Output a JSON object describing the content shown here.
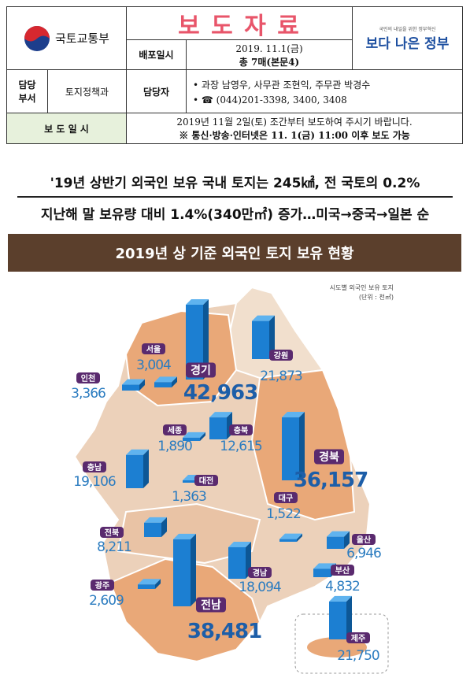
{
  "header": {
    "agency": "국토교통부",
    "title": "보 도 자 료",
    "release_label": "배포일시",
    "release_date": "2019. 11.1(금)",
    "pages": "총 7매(본문4)",
    "slogan_small": "국민의 내일을 위한 정부혁신",
    "slogan": "보다 나은 정부"
  },
  "contact": {
    "dept_label": "담당 부서",
    "dept": "토지정책과",
    "person_label": "담당자",
    "persons": "과장 남영우, 사무관 조현익, 주무관 박경수",
    "phone": "(044)201-3398, 3400, 3408"
  },
  "embargo": {
    "label": "보 도 일 시",
    "text": "2019년 11월 2일(토) 조간부터 보도하여 주시기 바랍니다.",
    "note": "※ 통신·방송·인터넷은 11. 1(금) 11:00 이후 보도 가능"
  },
  "headlines": [
    "'19년 상반기 외국인 보유 국내 토지는 245㎢, 전 국토의 0.2%",
    "지난해 말 보유량 대비 1.4%(340만㎡) 증가…미국→중국→일본 순"
  ],
  "infographic": {
    "title": "2019년 상 기준 외국인 토지 보유 현황",
    "legend_title": "시도별 외국인 보유 토지",
    "unit": "(단위 : 천㎡)",
    "regions": [
      {
        "name": "서울",
        "value": 3004,
        "label": "3,004"
      },
      {
        "name": "경기",
        "value": 42963,
        "label": "42,963"
      },
      {
        "name": "강원",
        "value": 21873,
        "label": "21,873"
      },
      {
        "name": "인천",
        "value": 3366,
        "label": "3,366"
      },
      {
        "name": "세종",
        "value": 1890,
        "label": "1,890"
      },
      {
        "name": "충북",
        "value": 12615,
        "label": "12,615"
      },
      {
        "name": "충남",
        "value": 19106,
        "label": "19,106"
      },
      {
        "name": "대전",
        "value": 1363,
        "label": "1,363"
      },
      {
        "name": "경북",
        "value": 36157,
        "label": "36,157"
      },
      {
        "name": "대구",
        "value": 1522,
        "label": "1,522"
      },
      {
        "name": "전북",
        "value": 8211,
        "label": "8,211"
      },
      {
        "name": "울산",
        "value": 6946,
        "label": "6,946"
      },
      {
        "name": "경남",
        "value": 18094,
        "label": "18,094"
      },
      {
        "name": "부산",
        "value": 4832,
        "label": "4,832"
      },
      {
        "name": "광주",
        "value": 2609,
        "label": "2,609"
      },
      {
        "name": "전남",
        "value": 38481,
        "label": "38,481"
      },
      {
        "name": "제주",
        "value": 21750,
        "label": "21,750"
      }
    ]
  }
}
